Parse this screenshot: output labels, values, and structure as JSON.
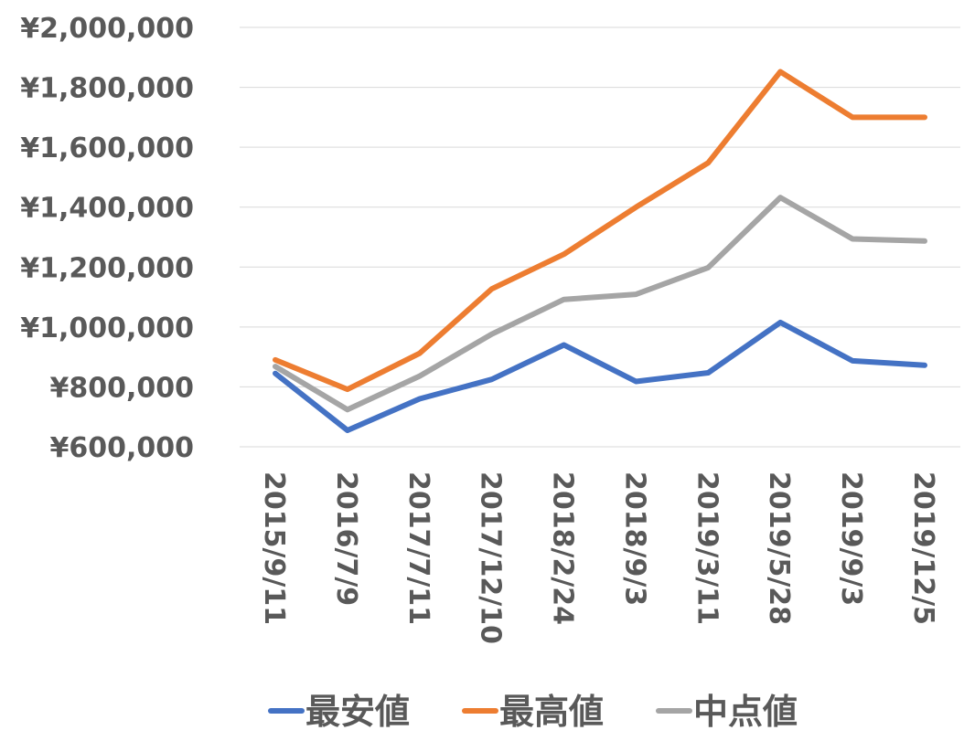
{
  "chart_data": {
    "type": "line",
    "title": "",
    "xlabel": "",
    "ylabel": "",
    "ylim": [
      600000,
      2000000
    ],
    "y_ticks": [
      {
        "value": 2000000,
        "label": "¥2,000,000"
      },
      {
        "value": 1800000,
        "label": "¥1,800,000"
      },
      {
        "value": 1600000,
        "label": "¥1,600,000"
      },
      {
        "value": 1400000,
        "label": "¥1,400,000"
      },
      {
        "value": 1200000,
        "label": "¥1,200,000"
      },
      {
        "value": 1000000,
        "label": "¥1,000,000"
      },
      {
        "value": 800000,
        "label": "¥800,000"
      },
      {
        "value": 600000,
        "label": "¥600,000"
      }
    ],
    "grid": true,
    "legend_position": "bottom",
    "categories": [
      "2015/9/11",
      "2016/7/9",
      "2017/7/11",
      "2017/12/10",
      "2018/2/24",
      "2018/9/3",
      "2019/3/11",
      "2019/5/28",
      "2019/9/3",
      "2019/12/5"
    ],
    "series": [
      {
        "name": "最安値",
        "color": "#4472c4",
        "values": [
          845000,
          655000,
          760000,
          825000,
          940000,
          818000,
          847000,
          1015000,
          887000,
          872000
        ]
      },
      {
        "name": "最高値",
        "color": "#ed7d31",
        "values": [
          890000,
          792000,
          912000,
          1127000,
          1243000,
          1400000,
          1548000,
          1852000,
          1700000,
          1700000
        ]
      },
      {
        "name": "中点値",
        "color": "#a5a5a5",
        "values": [
          868000,
          724000,
          836000,
          976000,
          1092000,
          1109000,
          1198000,
          1432000,
          1294000,
          1287000
        ]
      }
    ]
  }
}
